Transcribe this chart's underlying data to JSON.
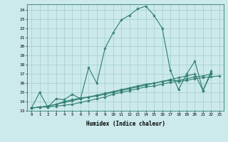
{
  "xlabel": "Humidex (Indice chaleur)",
  "ylabel": "",
  "xlim": [
    -0.5,
    23.5
  ],
  "ylim": [
    13,
    24.6
  ],
  "yticks": [
    13,
    14,
    15,
    16,
    17,
    18,
    19,
    20,
    21,
    22,
    23,
    24
  ],
  "xticks": [
    0,
    1,
    2,
    3,
    4,
    5,
    6,
    7,
    8,
    9,
    10,
    11,
    12,
    13,
    14,
    15,
    16,
    17,
    18,
    19,
    20,
    21,
    22,
    23
  ],
  "line_color": "#2e7d6e",
  "bg_color": "#cce9ec",
  "grid_color": "#9fcdd0",
  "series1_y": [
    13.3,
    15.0,
    13.4,
    14.3,
    14.2,
    14.8,
    14.3,
    17.7,
    16.0,
    19.8,
    21.5,
    22.9,
    23.4,
    24.1,
    24.4,
    23.4,
    22.0,
    17.4,
    15.3,
    17.0,
    18.4,
    15.2,
    17.1,
    null
  ],
  "series2_y": [
    13.3,
    13.4,
    13.4,
    13.5,
    13.6,
    13.7,
    13.9,
    14.1,
    14.3,
    14.5,
    14.8,
    15.0,
    15.2,
    15.4,
    15.6,
    15.7,
    15.9,
    16.1,
    16.2,
    16.3,
    16.5,
    16.6,
    16.7,
    16.8
  ],
  "series3_y": [
    13.3,
    13.4,
    13.5,
    13.7,
    13.9,
    14.1,
    14.3,
    14.5,
    14.7,
    14.9,
    15.1,
    15.3,
    15.5,
    15.7,
    15.9,
    16.0,
    16.2,
    16.3,
    16.3,
    16.5,
    16.7,
    16.8,
    17.0,
    null
  ],
  "series4_y": [
    13.3,
    13.4,
    13.5,
    13.7,
    14.0,
    14.2,
    14.4,
    14.5,
    14.6,
    14.8,
    15.0,
    15.2,
    15.4,
    15.6,
    15.8,
    16.0,
    16.2,
    16.4,
    16.6,
    16.8,
    17.0,
    15.2,
    17.3,
    null
  ]
}
